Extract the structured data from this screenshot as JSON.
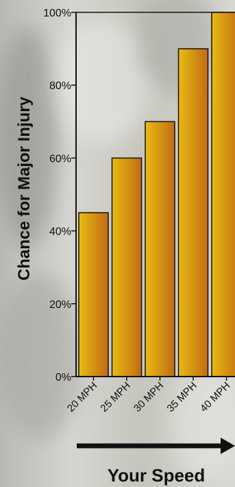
{
  "chart_data": {
    "type": "bar",
    "categories": [
      "20 MPH",
      "25 MPH",
      "30 MPH",
      "35 MPH",
      "40 MPH"
    ],
    "values": [
      45,
      60,
      70,
      90,
      100
    ],
    "ylabel": "Chance for Major Injury",
    "xlabel": "Your Speed",
    "ylim": [
      0,
      100
    ],
    "yticks": [
      0,
      20,
      40,
      60,
      80,
      100
    ],
    "ytick_labels": [
      "0%",
      "20%",
      "40%",
      "60%",
      "80%",
      "100%"
    ],
    "grid": false,
    "bar_color": "#d9960f"
  },
  "colors": {
    "bar_light": "#e8bb12",
    "bar_dark": "#c26b14",
    "axis": "#111111",
    "arrow": "#111111"
  }
}
